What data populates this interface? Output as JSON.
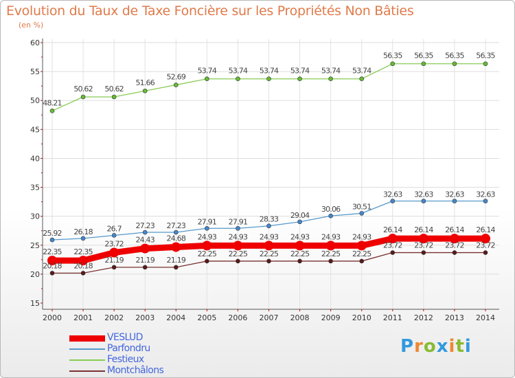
{
  "title": "Evolution du Taux de Taxe Foncière sur les Propriétés Non Bâties",
  "subtitle": "(en %)",
  "chart_data": {
    "type": "line",
    "x": [
      "2000",
      "2001",
      "2002",
      "2003",
      "2004",
      "2005",
      "2006",
      "2007",
      "2008",
      "2009",
      "2010",
      "2011",
      "2012",
      "2013",
      "2014"
    ],
    "ylim": [
      15,
      60
    ],
    "yticks": [
      15,
      20,
      25,
      30,
      35,
      40,
      45,
      50,
      55,
      60
    ],
    "grid": true,
    "series": [
      {
        "name": "Festieux",
        "color": "#88cc55",
        "marker": "#66bb33",
        "values": [
          48.21,
          50.62,
          50.62,
          51.66,
          52.69,
          53.74,
          53.74,
          53.74,
          53.74,
          53.74,
          53.74,
          56.35,
          56.35,
          56.35,
          56.35
        ],
        "labels": [
          "48.21",
          "50.62",
          "50.62",
          "51.66",
          "52.69",
          "53.74",
          "53.74",
          "53.74",
          "53.74",
          "53.74",
          "53.74",
          "56.35",
          "56.35",
          "56.35",
          "56.35"
        ]
      },
      {
        "name": "Parfondru",
        "color": "#5599cc",
        "marker": "#4488cc",
        "values": [
          25.92,
          26.18,
          26.7,
          27.23,
          27.23,
          27.91,
          27.91,
          28.33,
          29.04,
          30.06,
          30.51,
          32.63,
          32.63,
          32.63,
          32.63
        ],
        "labels": [
          "25.92",
          "26.18",
          "26.7",
          "27.23",
          "27.23",
          "27.91",
          "27.91",
          "28.33",
          "29.04",
          "30.06",
          "30.51",
          "32.63",
          "32.63",
          "32.63",
          "32.63"
        ]
      },
      {
        "name": "Montchâlons",
        "color": "#7a3030",
        "marker": "#5a1a1a",
        "values": [
          20.18,
          20.18,
          21.19,
          21.19,
          21.19,
          22.25,
          22.25,
          22.25,
          22.25,
          22.25,
          22.25,
          23.72,
          23.72,
          23.72,
          23.72
        ],
        "labels": [
          "20.18",
          "20.18",
          "21.19",
          "21.19",
          "21.19",
          "22.25",
          "22.25",
          "22.25",
          "22.25",
          "22.25",
          "22.25",
          "23.72",
          "23.72",
          "23.72",
          "23.72"
        ]
      },
      {
        "name": "VESLUD",
        "color": "#ee0000",
        "marker": "#ee0000",
        "values": [
          22.35,
          22.35,
          23.72,
          24.43,
          24.68,
          24.93,
          24.93,
          24.93,
          24.93,
          24.93,
          24.93,
          26.14,
          26.14,
          26.14,
          26.14
        ],
        "labels": [
          "22.35",
          "22.35",
          "23.72",
          "24.43",
          "24.68",
          "24.93",
          "24.93",
          "24.93",
          "24.93",
          "24.93",
          "24.93",
          "26.14",
          "26.14",
          "26.14",
          "26.14"
        ]
      }
    ]
  },
  "legend": [
    {
      "label": "VESLUD",
      "color": "#ee0000"
    },
    {
      "label": "Parfondru",
      "color": "#5599cc"
    },
    {
      "label": "Festieux",
      "color": "#88cc55"
    },
    {
      "label": "Montchâlons",
      "color": "#7a3030"
    }
  ],
  "logo": {
    "letters": [
      "P",
      "r",
      "o",
      "x",
      "i",
      "t",
      "i"
    ],
    "colors": [
      "#3399dd",
      "#ee8833",
      "#88bb33",
      "#3399dd",
      "#ee8833",
      "#88bb33",
      "#3399dd"
    ]
  }
}
